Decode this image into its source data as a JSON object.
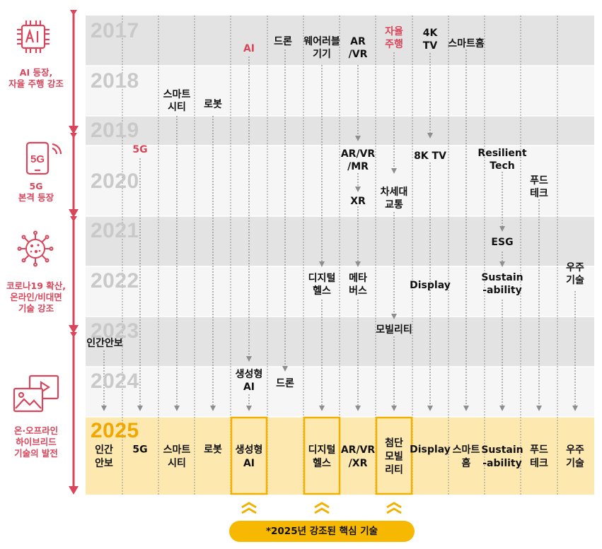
{
  "years": [
    "2017",
    "2018",
    "2019",
    "2020",
    "2021",
    "2022",
    "2023",
    "2024",
    "2025"
  ],
  "eras": [
    {
      "icon": "ai-chip-icon",
      "label": "AI 등장,\n자율 주행 강조"
    },
    {
      "icon": "5g-phone-icon",
      "label": "5G\n본격 등장"
    },
    {
      "icon": "virus-icon",
      "label": "코로나19 확산,\n온라인/비대면\n기술 강조"
    },
    {
      "icon": "media-window-icon",
      "label": "온·오프라인\n하이브리드\n기술의 발전"
    }
  ],
  "labels": {
    "t_ai": "AI",
    "t_drone": "드론",
    "t_wearable": "웨어러블\n기기",
    "t_arvr": "AR\n/VR",
    "t_autodrive": "자율\n주행",
    "t_4ktv": "4K\nTV",
    "t_smarthome": "스마트홈",
    "t_smartcity": "스마트\n시티",
    "t_robot": "로봇",
    "t_5g": "5G",
    "t_arvrmr": "AR/VR\n/MR",
    "t_8ktv": "8K TV",
    "t_resilient": "Resilient\nTech",
    "t_foodtech": "푸드\n테크",
    "t_xr": "XR",
    "t_nextmob": "차세대\n교통",
    "t_esg": "ESG",
    "t_dighealth": "디지털\n헬스",
    "t_metaverse": "메타\n버스",
    "t_display": "Display",
    "t_sustain": "Sustain\n-ability",
    "t_space": "우주\n기술",
    "t_mobility": "모빌리티",
    "t_security": "인간안보",
    "t_genai": "생성형\nAI",
    "t_drone2": "드론"
  },
  "final_row": [
    "인간\n안보",
    "5G",
    "스마트\n시티",
    "로봇",
    "생성형\nAI",
    "",
    "디지털\n헬스",
    "AR/VR\n/XR",
    "첨단\n모빌\n리티",
    "Display",
    "스마트\n홈",
    "Sustain\n-ability",
    "푸드\n테크",
    "우주\n기술"
  ],
  "highlighted_columns": [
    4,
    6,
    8
  ],
  "footer": {
    "badge": "*2025년 강조된 핵심 기술"
  },
  "colors": {
    "accent_red": "#d9465b",
    "highlight_gold": "#f2a600",
    "highlight_fill": "#fde9b0",
    "badge": "#f6b800"
  }
}
